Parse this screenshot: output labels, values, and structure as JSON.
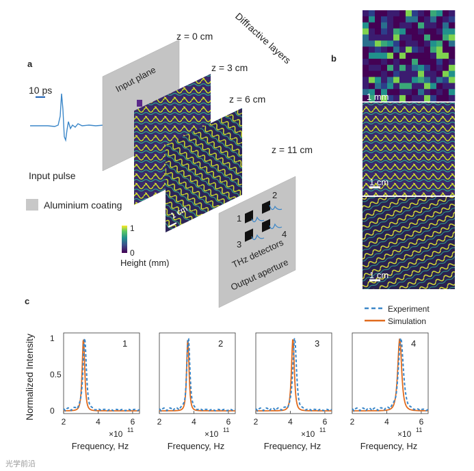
{
  "panel_a": {
    "panel_label": "a",
    "pulse_scale": "10 ps",
    "input_pulse_label": "Input pulse",
    "aluminium_label": "Aluminium coating",
    "input_plane_label": "Input plane",
    "diffractive_layers_label": "Diffractive layers",
    "z_labels": [
      "z = 0 cm",
      "z = 3 cm",
      "z = 6 cm",
      "z = 11 cm"
    ],
    "layer_scale": "1 cm",
    "colorbar": {
      "max": "1",
      "min": "0",
      "label": "Height (mm)"
    },
    "detectors_label": "THz detectors",
    "detector_numbers": [
      "1",
      "2",
      "3",
      "4"
    ],
    "output_aperture_label": "Output aperture"
  },
  "panel_b": {
    "panel_label": "b",
    "scale_labels": [
      "1 mm",
      "1 cm",
      "1 cm"
    ]
  },
  "panel_c": {
    "panel_label": "c",
    "legend": {
      "experiment": "Experiment",
      "simulation": "Simulation"
    },
    "experiment_color": "#3a86c8",
    "simulation_color": "#e06a1c",
    "ylabel": "Normalized Intensity",
    "xlabel": "Frequency, Hz",
    "x_multiplier_base": "×10",
    "x_multiplier_exp": "11",
    "yticks": [
      "1",
      "0.5",
      "0"
    ],
    "xticks": [
      "2",
      "4",
      "6"
    ],
    "xlim": [
      2,
      6.4
    ],
    "ylim": [
      0,
      1
    ]
  },
  "chart_data": {
    "type": "line",
    "title": "",
    "xlabel": "Frequency, Hz (×10^11)",
    "ylabel": "Normalized Intensity",
    "xlim": [
      2,
      6.4
    ],
    "ylim": [
      0,
      1
    ],
    "panels": [
      {
        "name": "1",
        "simulation": {
          "peak": 3.15,
          "width": 0.12
        },
        "experiment": {
          "peak": 3.22,
          "width": 0.15
        }
      },
      {
        "name": "2",
        "simulation": {
          "peak": 3.65,
          "width": 0.11
        },
        "experiment": {
          "peak": 3.68,
          "width": 0.14
        }
      },
      {
        "name": "3",
        "simulation": {
          "peak": 4.15,
          "width": 0.13
        },
        "experiment": {
          "peak": 4.25,
          "width": 0.16
        }
      },
      {
        "name": "4",
        "simulation": {
          "peak": 4.75,
          "width": 0.18
        },
        "experiment": {
          "peak": 4.82,
          "width": 0.22
        }
      }
    ]
  },
  "watermark": "光学前沿"
}
